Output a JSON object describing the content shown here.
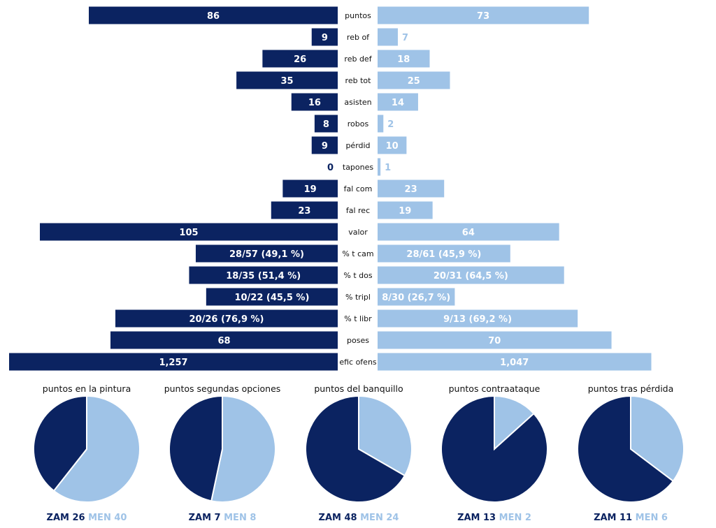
{
  "colors": {
    "home": "#0b2361",
    "away": "#9fc3e7"
  },
  "chart_data": [
    {
      "type": "bar",
      "orientation": "horizontal-diverging",
      "categories": [
        "puntos",
        "reb of",
        "reb def",
        "reb tot",
        "asisten",
        "robos",
        "pérdid",
        "tapones",
        "fal com",
        "fal rec",
        "valor",
        "% t cam",
        "% t dos",
        "% tripl",
        "% t libr",
        "poses",
        "efic ofens"
      ],
      "series": [
        {
          "values": [
            86,
            9,
            26,
            35,
            16,
            8,
            9,
            0,
            19,
            23,
            105,
            49.1,
            51.4,
            45.5,
            76.9,
            68,
            1.257
          ],
          "labels": [
            "86",
            "9",
            "26",
            "35",
            "16",
            "8",
            "9",
            "0",
            "19",
            "23",
            "105",
            "28/57 (49,1 %)",
            "18/35 (51,4 %)",
            "10/22 (45,5 %)",
            "20/26 (76,9 %)",
            "68",
            "1,257"
          ]
        },
        {
          "values": [
            73,
            7,
            18,
            25,
            14,
            2,
            10,
            1,
            23,
            19,
            64,
            45.9,
            64.5,
            26.7,
            69.2,
            70,
            1.047
          ],
          "labels": [
            "73",
            "7",
            "18",
            "25",
            "14",
            "2",
            "10",
            "1",
            "23",
            "19",
            "64",
            "28/61 (45,9 %)",
            "20/31 (64,5 %)",
            "8/30 (26,7 %)",
            "9/13 (69,2 %)",
            "70",
            "1,047"
          ]
        }
      ]
    },
    {
      "type": "pie",
      "title": "puntos en la pintura",
      "slices": [
        {
          "label": "ZAM",
          "value": 26
        },
        {
          "label": "MEN",
          "value": 40
        }
      ]
    },
    {
      "type": "pie",
      "title": "puntos segundas opciones",
      "slices": [
        {
          "label": "ZAM",
          "value": 7
        },
        {
          "label": "MEN",
          "value": 8
        }
      ]
    },
    {
      "type": "pie",
      "title": "puntos del banquillo",
      "slices": [
        {
          "label": "ZAM",
          "value": 48
        },
        {
          "label": "MEN",
          "value": 24
        }
      ]
    },
    {
      "type": "pie",
      "title": "puntos contraataque",
      "slices": [
        {
          "label": "ZAM",
          "value": 13
        },
        {
          "label": "MEN",
          "value": 2
        }
      ]
    },
    {
      "type": "pie",
      "title": "puntos tras pérdida",
      "slices": [
        {
          "label": "ZAM",
          "value": 11
        },
        {
          "label": "MEN",
          "value": 6
        }
      ]
    }
  ]
}
